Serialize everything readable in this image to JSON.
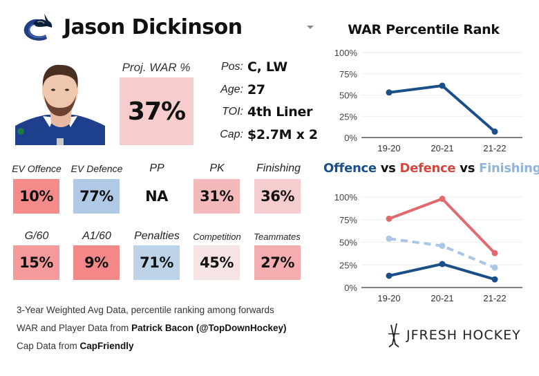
{
  "header": {
    "player_name": "Jason Dickinson",
    "team_logo": "canucks-orca-logo"
  },
  "projection": {
    "label": "Proj. WAR %",
    "value": "37%",
    "color": "#f6cccc"
  },
  "info": [
    {
      "label": "Pos:",
      "value": "C, LW"
    },
    {
      "label": "Age:",
      "value": "27"
    },
    {
      "label": "TOI:",
      "value": "4th Liner"
    },
    {
      "label": "Cap:",
      "value": "$2.7M x 2"
    }
  ],
  "tiles_row1": [
    {
      "label": "EV Offence",
      "value": "10%",
      "color": "#f48a8a"
    },
    {
      "label": "EV Defence",
      "value": "77%",
      "color": "#b0cae6"
    },
    {
      "label": "PP",
      "value": "NA",
      "color": "#ffffff"
    },
    {
      "label": "PK",
      "value": "31%",
      "color": "#f4b9bb"
    },
    {
      "label": "Finishing",
      "value": "36%",
      "color": "#f5cdcf"
    }
  ],
  "tiles_row2": [
    {
      "label": "G/60",
      "value": "15%",
      "color": "#f59a9b"
    },
    {
      "label": "A1/60",
      "value": "9%",
      "color": "#f48889"
    },
    {
      "label": "Penalties",
      "value": "71%",
      "color": "#bcd3ea"
    },
    {
      "label": "Competition",
      "value": "45%",
      "color": "#f6e4e5"
    },
    {
      "label": "Teammates",
      "value": "27%",
      "color": "#f4aeb0"
    }
  ],
  "footer": {
    "line1": "3-Year Weighted Avg Data, percentile ranking among forwards",
    "line2_prefix": "WAR and Player Data from ",
    "line2_bold": "Patrick Bacon (@TopDownHockey)",
    "line3_prefix": "Cap Data from ",
    "line3_bold": "CapFriendly"
  },
  "brand": {
    "text": "JFRESH HOCKEY",
    "icon": "crossed-sticks-icon"
  },
  "chart_titles": {
    "war": "WAR Percentile Rank",
    "comp_offence": "Offence",
    "comp_vs1": " vs ",
    "comp_defence": "Defence",
    "comp_vs2": " vs ",
    "comp_finishing": "Finishing"
  },
  "chart_data": [
    {
      "type": "line",
      "title": "WAR Percentile Rank",
      "categories": [
        "19-20",
        "20-21",
        "21-22"
      ],
      "series": [
        {
          "name": "WAR",
          "values": [
            53,
            61,
            7
          ],
          "color": "#1b4f8a",
          "dashed": false
        }
      ],
      "ylim": [
        0,
        100
      ],
      "yticks": [
        "0%",
        "25%",
        "50%",
        "75%",
        "100%"
      ],
      "grid": true,
      "xlabel": "",
      "ylabel": ""
    },
    {
      "type": "line",
      "title": "Offence vs Defence vs Finishing",
      "categories": [
        "19-20",
        "20-21",
        "21-22"
      ],
      "series": [
        {
          "name": "Offence",
          "values": [
            13,
            26,
            9
          ],
          "color": "#1b4f8a",
          "dashed": false
        },
        {
          "name": "Defence",
          "values": [
            76,
            98,
            38
          ],
          "color": "#e06a6e",
          "dashed": false
        },
        {
          "name": "Finishing",
          "values": [
            54,
            46,
            22
          ],
          "color": "#a9c6e6",
          "dashed": true
        }
      ],
      "ylim": [
        0,
        100
      ],
      "yticks": [
        "0%",
        "25%",
        "50%",
        "75%",
        "100%"
      ],
      "grid": true,
      "xlabel": "",
      "ylabel": ""
    }
  ]
}
